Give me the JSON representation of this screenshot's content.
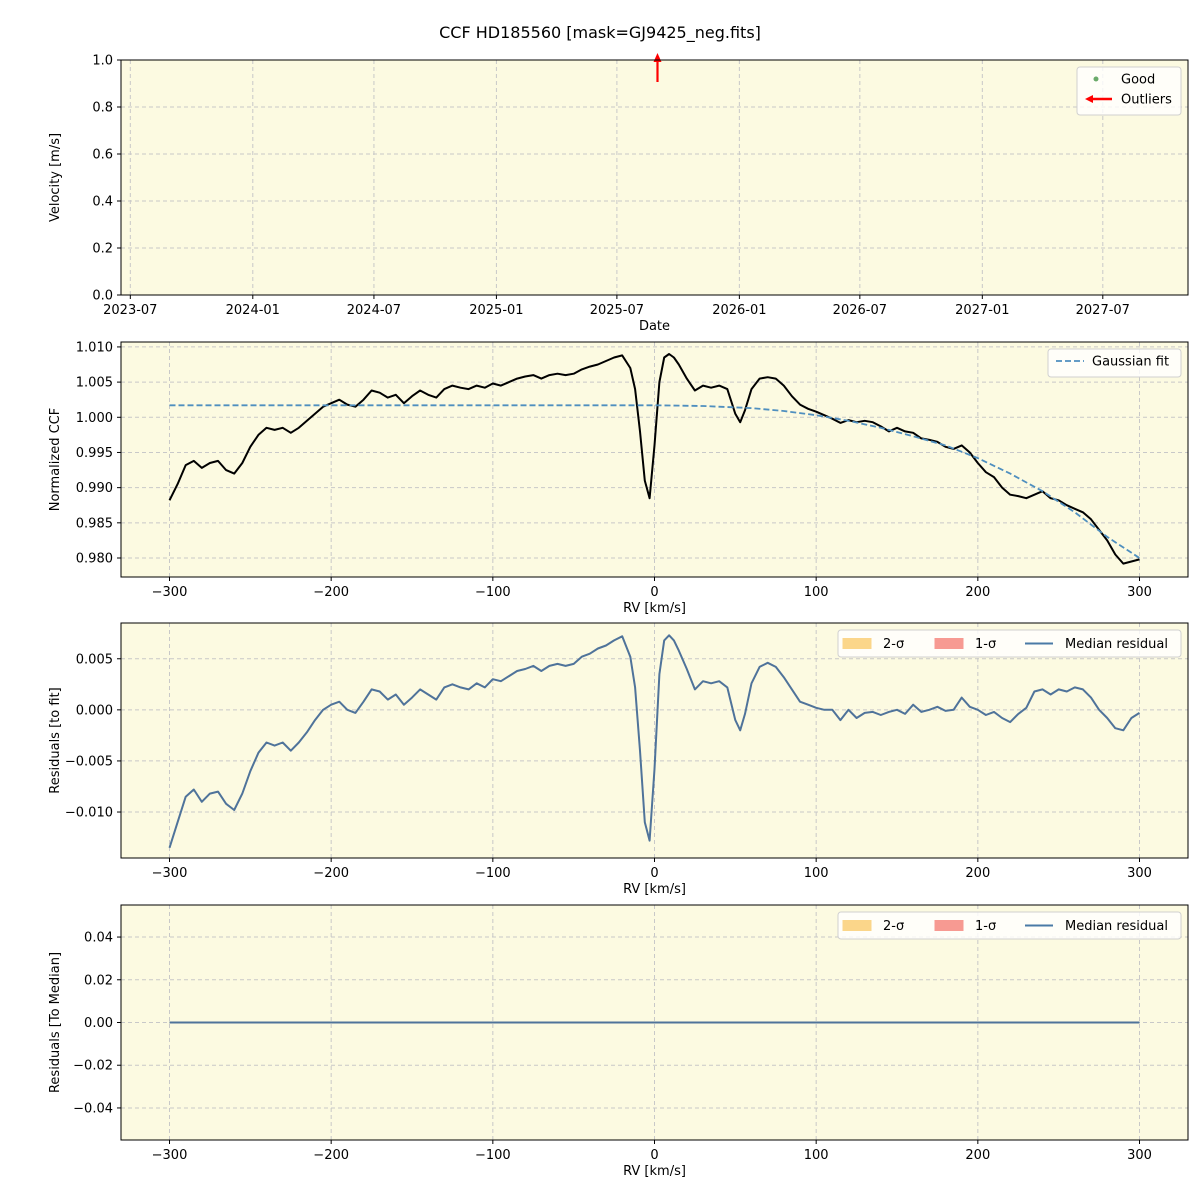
{
  "figure": {
    "title": "CCF HD185560 [mask=GJ9425_neg.fits]",
    "plot_bg": "#fcfae1",
    "grid_color": "#c8c8c8"
  },
  "chart_data": [
    {
      "type": "scatter",
      "xlabel": "Date",
      "ylabel": "Velocity [m/s]",
      "x_axis_kind": "date",
      "xlim": [
        "2023-06-17",
        "2027-11-06"
      ],
      "ylim": [
        0.0,
        1.0
      ],
      "xticks": [
        {
          "value": "2023-07-01",
          "label": "2023-07"
        },
        {
          "value": "2024-01-01",
          "label": "2024-01"
        },
        {
          "value": "2024-07-01",
          "label": "2024-07"
        },
        {
          "value": "2025-01-01",
          "label": "2025-01"
        },
        {
          "value": "2025-07-01",
          "label": "2025-07"
        },
        {
          "value": "2026-01-01",
          "label": "2026-01"
        },
        {
          "value": "2026-07-01",
          "label": "2026-07"
        },
        {
          "value": "2027-01-01",
          "label": "2027-01"
        },
        {
          "value": "2027-07-01",
          "label": "2027-07"
        }
      ],
      "yticks": [
        0.0,
        0.2,
        0.4,
        0.6,
        0.8,
        1.0
      ],
      "ytick_labels": [
        "0.0",
        "0.2",
        "0.4",
        "0.6",
        "0.8",
        "1.0"
      ],
      "grid": true,
      "legend_position": "top-right",
      "series": [
        {
          "name": "Good",
          "color": "#6aaa6a",
          "marker": "dot",
          "points": []
        },
        {
          "name": "Outliers",
          "color": "#ff0000",
          "marker": "arrow",
          "points": [
            {
              "x": "2025-08-31",
              "y": 1.0
            }
          ]
        }
      ]
    },
    {
      "type": "line",
      "xlabel": "RV [km/s]",
      "ylabel": "Normalized CCF",
      "xlim": [
        -330,
        330
      ],
      "ylim": [
        0.9773,
        1.0107
      ],
      "xticks": [
        -300,
        -200,
        -100,
        0,
        100,
        200,
        300
      ],
      "xtick_labels": [
        "−300",
        "−200",
        "−100",
        "0",
        "100",
        "200",
        "300"
      ],
      "yticks": [
        0.98,
        0.985,
        0.99,
        0.995,
        1.0,
        1.005,
        1.01
      ],
      "ytick_labels": [
        "0.980",
        "0.985",
        "0.990",
        "0.995",
        "1.000",
        "1.005",
        "1.010"
      ],
      "grid": true,
      "legend_position": "top-right",
      "series": [
        {
          "name": "",
          "color": "#000000",
          "style": "solid",
          "x": [
            -300,
            -295,
            -290,
            -285,
            -280,
            -275,
            -270,
            -265,
            -260,
            -255,
            -250,
            -245,
            -240,
            -235,
            -230,
            -225,
            -220,
            -215,
            -210,
            -205,
            -200,
            -195,
            -190,
            -185,
            -180,
            -175,
            -170,
            -165,
            -160,
            -155,
            -150,
            -145,
            -140,
            -135,
            -130,
            -125,
            -120,
            -115,
            -110,
            -105,
            -100,
            -95,
            -90,
            -85,
            -80,
            -75,
            -70,
            -65,
            -60,
            -55,
            -50,
            -45,
            -40,
            -35,
            -30,
            -25,
            -20,
            -15,
            -12,
            -9,
            -6,
            -3,
            0,
            3,
            6,
            9,
            12,
            15,
            20,
            25,
            30,
            35,
            40,
            45,
            50,
            53,
            56,
            60,
            65,
            70,
            75,
            80,
            85,
            90,
            95,
            100,
            105,
            110,
            115,
            120,
            125,
            130,
            135,
            140,
            145,
            150,
            155,
            160,
            165,
            170,
            175,
            180,
            185,
            190,
            195,
            200,
            205,
            210,
            215,
            220,
            225,
            230,
            235,
            240,
            245,
            250,
            255,
            260,
            265,
            270,
            275,
            280,
            285,
            290,
            295,
            300
          ],
          "y": [
            0.9882,
            0.9905,
            0.9932,
            0.9938,
            0.9928,
            0.9935,
            0.9938,
            0.9925,
            0.992,
            0.9935,
            0.9958,
            0.9975,
            0.9985,
            0.9982,
            0.9985,
            0.9978,
            0.9985,
            0.9995,
            1.0005,
            1.0015,
            1.002,
            1.0025,
            1.0018,
            1.0015,
            1.0025,
            1.0038,
            1.0035,
            1.0028,
            1.0032,
            1.002,
            1.003,
            1.0038,
            1.0032,
            1.0028,
            1.004,
            1.0045,
            1.0042,
            1.004,
            1.0045,
            1.0042,
            1.0048,
            1.0045,
            1.005,
            1.0055,
            1.0058,
            1.006,
            1.0055,
            1.006,
            1.0062,
            1.006,
            1.0062,
            1.0068,
            1.0072,
            1.0075,
            1.008,
            1.0085,
            1.0088,
            1.007,
            1.004,
            0.998,
            0.991,
            0.9885,
            0.996,
            1.005,
            1.0085,
            1.009,
            1.0085,
            1.0075,
            1.0055,
            1.0038,
            1.0045,
            1.0042,
            1.0045,
            1.004,
            1.0005,
            0.9993,
            1.001,
            1.004,
            1.0055,
            1.0057,
            1.0055,
            1.0045,
            1.003,
            1.0018,
            1.0012,
            1.0008,
            1.0003,
            0.9998,
            0.9992,
            0.9996,
            0.9993,
            0.9995,
            0.9993,
            0.9987,
            0.998,
            0.9985,
            0.998,
            0.9978,
            0.997,
            0.9968,
            0.9965,
            0.9958,
            0.9955,
            0.996,
            0.995,
            0.9935,
            0.9922,
            0.9915,
            0.99,
            0.989,
            0.9888,
            0.9885,
            0.989,
            0.9895,
            0.9885,
            0.9882,
            0.9875,
            0.987,
            0.9865,
            0.9855,
            0.984,
            0.9825,
            0.9805,
            0.9792,
            0.9795,
            0.9798
          ]
        },
        {
          "name": "Gaussian fit",
          "color": "#4f8fbf",
          "style": "dashed",
          "x": [
            -300,
            -250,
            -200,
            -150,
            -100,
            -50,
            0,
            30,
            60,
            80,
            100,
            120,
            140,
            160,
            180,
            200,
            220,
            240,
            260,
            280,
            300
          ],
          "y": [
            1.0017,
            1.0017,
            1.0017,
            1.0017,
            1.0017,
            1.0017,
            1.0017,
            1.0016,
            1.0013,
            1.0009,
            1.0003,
            0.9995,
            0.9985,
            0.9973,
            0.996,
            0.9942,
            0.992,
            0.9895,
            0.9865,
            0.983,
            0.98
          ]
        }
      ]
    },
    {
      "type": "line",
      "xlabel": "RV [km/s]",
      "ylabel": "Residuals [to fit]",
      "xlim": [
        -330,
        330
      ],
      "ylim": [
        -0.0145,
        0.0085
      ],
      "xticks": [
        -300,
        -200,
        -100,
        0,
        100,
        200,
        300
      ],
      "xtick_labels": [
        "−300",
        "−200",
        "−100",
        "0",
        "100",
        "200",
        "300"
      ],
      "yticks": [
        -0.01,
        -0.005,
        0.0,
        0.005
      ],
      "ytick_labels": [
        "−0.010",
        "−0.005",
        "0.000",
        "0.005"
      ],
      "grid": true,
      "legend_position": "top-right",
      "legend": [
        {
          "label": "2-σ",
          "kind": "patch",
          "color": "#fbd68a"
        },
        {
          "label": "1-σ",
          "kind": "patch",
          "color": "#f79a92"
        },
        {
          "label": "Median residual",
          "kind": "line",
          "color": "#4a7aa6"
        }
      ],
      "series": [
        {
          "name": "Median residual",
          "color": "#4f739a",
          "x": [
            -300,
            -295,
            -290,
            -285,
            -280,
            -275,
            -270,
            -265,
            -260,
            -255,
            -250,
            -245,
            -240,
            -235,
            -230,
            -225,
            -220,
            -215,
            -210,
            -205,
            -200,
            -195,
            -190,
            -185,
            -180,
            -175,
            -170,
            -165,
            -160,
            -155,
            -150,
            -145,
            -140,
            -135,
            -130,
            -125,
            -120,
            -115,
            -110,
            -105,
            -100,
            -95,
            -90,
            -85,
            -80,
            -75,
            -70,
            -65,
            -60,
            -55,
            -50,
            -45,
            -40,
            -35,
            -30,
            -25,
            -20,
            -15,
            -12,
            -9,
            -6,
            -3,
            0,
            3,
            6,
            9,
            12,
            15,
            20,
            25,
            30,
            35,
            40,
            45,
            50,
            53,
            56,
            60,
            65,
            70,
            75,
            80,
            85,
            90,
            95,
            100,
            105,
            110,
            115,
            120,
            125,
            130,
            135,
            140,
            145,
            150,
            155,
            160,
            165,
            170,
            175,
            180,
            185,
            190,
            195,
            200,
            205,
            210,
            215,
            220,
            225,
            230,
            235,
            240,
            245,
            250,
            255,
            260,
            265,
            270,
            275,
            280,
            285,
            290,
            295,
            300
          ],
          "y": [
            -0.0135,
            -0.011,
            -0.0085,
            -0.0078,
            -0.009,
            -0.0082,
            -0.008,
            -0.0092,
            -0.0098,
            -0.0082,
            -0.006,
            -0.0042,
            -0.0032,
            -0.0035,
            -0.0032,
            -0.004,
            -0.0032,
            -0.0022,
            -0.001,
            0.0,
            0.0005,
            0.0008,
            0.0,
            -0.0003,
            0.0008,
            0.002,
            0.0018,
            0.001,
            0.0015,
            0.0005,
            0.0012,
            0.002,
            0.0015,
            0.001,
            0.0022,
            0.0025,
            0.0022,
            0.002,
            0.0026,
            0.0022,
            0.003,
            0.0028,
            0.0033,
            0.0038,
            0.004,
            0.0043,
            0.0038,
            0.0043,
            0.0045,
            0.0043,
            0.0045,
            0.0052,
            0.0055,
            0.006,
            0.0063,
            0.0068,
            0.0072,
            0.0052,
            0.0022,
            -0.004,
            -0.011,
            -0.0128,
            -0.0058,
            0.0035,
            0.0068,
            0.0073,
            0.0068,
            0.0058,
            0.004,
            0.002,
            0.0028,
            0.0026,
            0.0028,
            0.0022,
            -0.001,
            -0.002,
            -0.0004,
            0.0026,
            0.0042,
            0.0046,
            0.0042,
            0.0032,
            0.002,
            0.0008,
            0.0005,
            0.0002,
            0.0,
            0.0,
            -0.001,
            0.0,
            -0.0008,
            -0.0003,
            -0.0002,
            -0.0005,
            -0.0002,
            0.0,
            -0.0004,
            0.0005,
            -0.0002,
            0.0,
            0.0003,
            -0.0001,
            0.0,
            0.0012,
            0.0003,
            0.0,
            -0.0005,
            -0.0002,
            -0.0008,
            -0.0012,
            -0.0004,
            0.0002,
            0.0018,
            0.002,
            0.0015,
            0.002,
            0.0018,
            0.0022,
            0.002,
            0.0012,
            0.0,
            -0.0008,
            -0.0018,
            -0.002,
            -0.0008,
            -0.0003
          ]
        }
      ]
    },
    {
      "type": "line",
      "xlabel": "RV [km/s]",
      "ylabel": "Residuals [To Median]",
      "xlim": [
        -330,
        330
      ],
      "ylim": [
        -0.055,
        0.055
      ],
      "xticks": [
        -300,
        -200,
        -100,
        0,
        100,
        200,
        300
      ],
      "xtick_labels": [
        "−300",
        "−200",
        "−100",
        "0",
        "100",
        "200",
        "300"
      ],
      "yticks": [
        -0.04,
        -0.02,
        0.0,
        0.02,
        0.04
      ],
      "ytick_labels": [
        "−0.04",
        "−0.02",
        "0.00",
        "0.02",
        "0.04"
      ],
      "grid": true,
      "legend_position": "top-right",
      "legend": [
        {
          "label": "2-σ",
          "kind": "patch",
          "color": "#fbd68a"
        },
        {
          "label": "1-σ",
          "kind": "patch",
          "color": "#f79a92"
        },
        {
          "label": "Median residual",
          "kind": "line",
          "color": "#4a7aa6"
        }
      ],
      "series": [
        {
          "name": "Median residual",
          "color": "#4f739a",
          "x": [
            -300,
            300
          ],
          "y": [
            0.0,
            0.0
          ]
        }
      ]
    }
  ]
}
